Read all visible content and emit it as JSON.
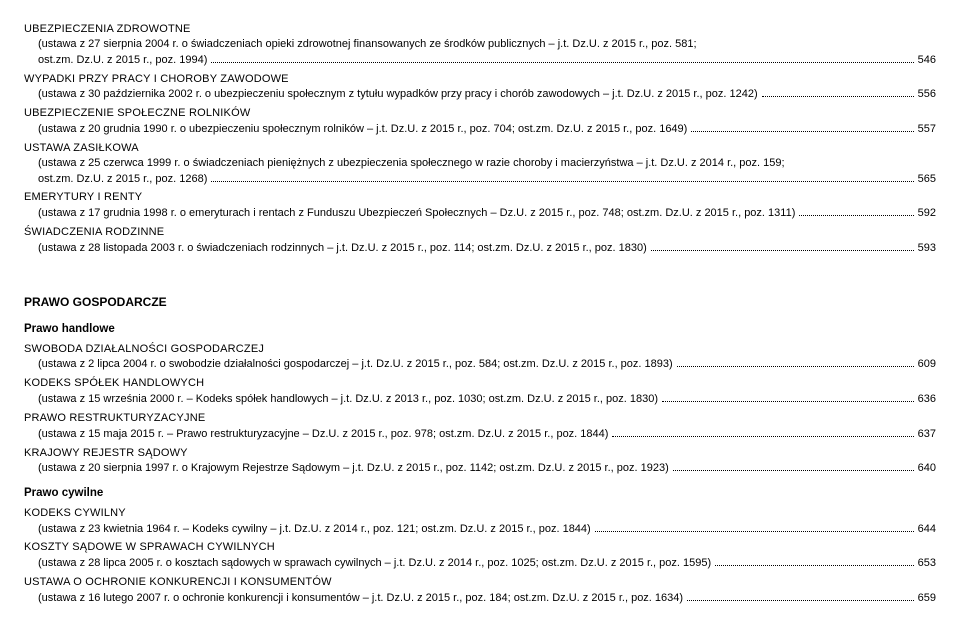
{
  "items": [
    {
      "type": "heading",
      "text": "UBEZPIECZENIA ZDROWOTNE"
    },
    {
      "type": "wrap",
      "text": "(ustawa z 27 sierpnia 2004 r. o świadczeniach opieki zdrowotnej finansowanych ze środków publicznych – j.t. Dz.U. z 2015 r., poz. 581;"
    },
    {
      "type": "entry",
      "text": "ost.zm. Dz.U. z 2015 r., poz. 1994)",
      "page": "546"
    },
    {
      "type": "heading",
      "text": "WYPADKI PRZY PRACY I CHOROBY ZAWODOWE"
    },
    {
      "type": "entry",
      "text": "(ustawa z 30 października 2002 r. o ubezpieczeniu społecznym z tytułu wypadków przy pracy i chorób zawodowych – j.t. Dz.U. z 2015 r., poz. 1242)",
      "page": "556"
    },
    {
      "type": "heading",
      "text": "UBEZPIECZENIE SPOŁECZNE ROLNIKÓW"
    },
    {
      "type": "entry",
      "text": "(ustawa z 20 grudnia 1990 r. o ubezpieczeniu społecznym rolników – j.t. Dz.U. z 2015 r., poz. 704; ost.zm. Dz.U. z 2015 r., poz. 1649)",
      "page": "557"
    },
    {
      "type": "heading",
      "text": "USTAWA ZASIŁKOWA"
    },
    {
      "type": "wrap",
      "text": "(ustawa z 25 czerwca 1999 r. o świadczeniach pieniężnych z ubezpieczenia społecznego w razie choroby i macierzyństwa – j.t. Dz.U. z 2014 r., poz. 159;"
    },
    {
      "type": "entry",
      "text": "ost.zm. Dz.U. z 2015 r., poz. 1268)",
      "page": "565"
    },
    {
      "type": "heading",
      "text": "EMERYTURY I RENTY"
    },
    {
      "type": "entry",
      "text": "(ustawa z 17 grudnia 1998 r. o emeryturach i rentach z Funduszu Ubezpieczeń Społecznych – Dz.U. z 2015 r., poz. 748; ost.zm. Dz.U. z 2015 r., poz. 1311)",
      "page": "592"
    },
    {
      "type": "heading",
      "text": "ŚWIADCZENIA RODZINNE"
    },
    {
      "type": "entry",
      "text": "(ustawa z 28 listopada 2003 r. o świadczeniach rodzinnych – j.t. Dz.U. z 2015 r., poz. 114; ost.zm. Dz.U. z 2015 r., poz. 1830)",
      "page": "593"
    },
    {
      "type": "section",
      "text": "PRAWO GOSPODARCZE"
    },
    {
      "type": "sub",
      "text": "Prawo handlowe"
    },
    {
      "type": "heading",
      "text": "SWOBODA DZIAŁALNOŚCI GOSPODARCZEJ"
    },
    {
      "type": "entry",
      "text": "(ustawa z 2 lipca 2004 r. o swobodzie działalności gospodarczej – j.t. Dz.U. z 2015 r., poz. 584; ost.zm. Dz.U. z 2015 r., poz. 1893)",
      "page": "609"
    },
    {
      "type": "heading",
      "text": "KODEKS SPÓŁEK HANDLOWYCH"
    },
    {
      "type": "entry",
      "text": "(ustawa z 15 września 2000 r. – Kodeks spółek handlowych – j.t. Dz.U. z 2013 r., poz. 1030; ost.zm. Dz.U. z 2015 r., poz. 1830)",
      "page": "636"
    },
    {
      "type": "heading",
      "text": "PRAWO RESTRUKTURYZACYJNE"
    },
    {
      "type": "entry",
      "text": "(ustawa z 15 maja 2015 r. – Prawo restrukturyzacyjne – Dz.U. z 2015 r., poz. 978; ost.zm. Dz.U. z 2015 r., poz. 1844)",
      "page": "637"
    },
    {
      "type": "heading",
      "text": "KRAJOWY REJESTR SĄDOWY"
    },
    {
      "type": "entry",
      "text": "(ustawa z 20 sierpnia 1997 r. o Krajowym Rejestrze Sądowym – j.t. Dz.U. z 2015 r., poz. 1142; ost.zm. Dz.U. z 2015 r., poz. 1923)",
      "page": "640"
    },
    {
      "type": "sub",
      "text": "Prawo cywilne"
    },
    {
      "type": "heading",
      "text": "KODEKS CYWILNY"
    },
    {
      "type": "entry",
      "text": "(ustawa z 23 kwietnia 1964 r. – Kodeks cywilny – j.t. Dz.U. z 2014 r., poz. 121; ost.zm. Dz.U. z 2015 r., poz. 1844)",
      "page": "644"
    },
    {
      "type": "heading",
      "text": "KOSZTY SĄDOWE W SPRAWACH CYWILNYCH"
    },
    {
      "type": "entry",
      "text": "(ustawa z 28 lipca 2005 r. o kosztach sądowych w sprawach cywilnych – j.t. Dz.U. z 2014 r., poz. 1025; ost.zm. Dz.U. z 2015 r., poz. 1595)",
      "page": "653"
    },
    {
      "type": "heading",
      "text": "USTAWA O OCHRONIE KONKURENCJI I KONSUMENTÓW"
    },
    {
      "type": "entry",
      "text": "(ustawa z 16 lutego 2007 r. o ochronie konkurencji i konsumentów – j.t. Dz.U. z 2015 r., poz. 184; ost.zm. Dz.U. z 2015 r., poz. 1634)",
      "page": "659"
    }
  ]
}
